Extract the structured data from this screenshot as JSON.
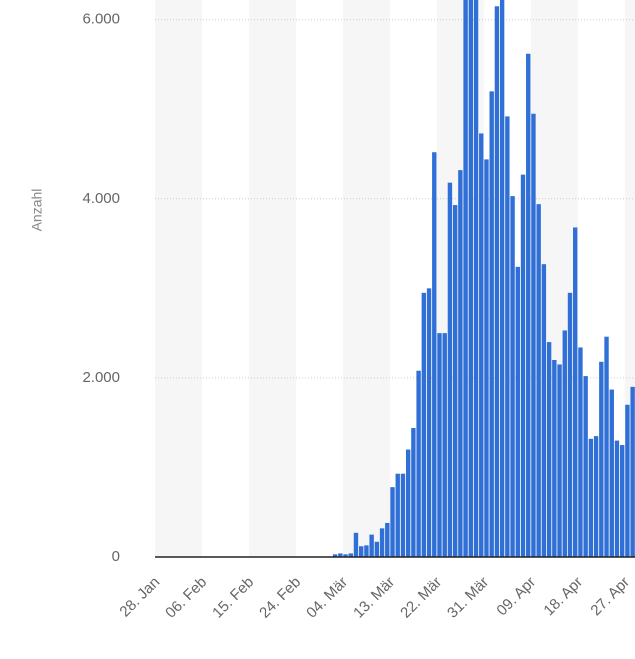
{
  "chart_data": {
    "type": "bar",
    "y_label": "Anzahl",
    "categories": [
      "28. Jan",
      null,
      null,
      null,
      null,
      null,
      null,
      null,
      null,
      "06. Feb",
      null,
      null,
      null,
      null,
      null,
      null,
      null,
      null,
      "15. Feb",
      null,
      null,
      null,
      null,
      null,
      null,
      null,
      null,
      "24. Feb",
      null,
      null,
      null,
      null,
      null,
      null,
      null,
      null,
      "04. Mär",
      null,
      null,
      null,
      null,
      null,
      null,
      null,
      null,
      "13. Mär",
      null,
      null,
      null,
      null,
      null,
      null,
      null,
      null,
      "22. Mär",
      null,
      null,
      null,
      null,
      null,
      null,
      null,
      null,
      "31. Mär",
      null,
      null,
      null,
      null,
      null,
      null,
      null,
      null,
      "09. Apr",
      null,
      null,
      null,
      null,
      null,
      null,
      null,
      null,
      "18. Apr",
      null,
      null,
      null,
      null,
      null,
      null,
      null,
      null,
      "27. Apr",
      null
    ],
    "values": [
      0,
      0,
      0,
      0,
      0,
      0,
      0,
      0,
      0,
      0,
      0,
      0,
      0,
      0,
      0,
      0,
      0,
      0,
      0,
      0,
      0,
      0,
      0,
      0,
      0,
      0,
      0,
      0,
      0,
      0,
      0,
      0,
      0,
      0,
      30,
      40,
      30,
      40,
      270,
      120,
      130,
      250,
      170,
      320,
      380,
      780,
      930,
      930,
      1200,
      1440,
      2080,
      2950,
      3000,
      4520,
      2500,
      2500,
      4180,
      3930,
      4320,
      6220,
      6220,
      6220,
      4730,
      4440,
      5200,
      6150,
      6220,
      4920,
      4030,
      3240,
      4270,
      5620,
      4950,
      3940,
      3270,
      2400,
      2200,
      2150,
      2530,
      2950,
      3680,
      2340,
      2020,
      1320,
      1350,
      2180,
      2460,
      1870,
      1300,
      1250,
      1700,
      1900
    ],
    "color": "#2f6fd6",
    "ylim": [
      0,
      6220
    ],
    "yticks": [
      0,
      {
        "value": 2000,
        "label": "2.000"
      },
      {
        "value": 4000,
        "label": "4.000"
      },
      {
        "value": 6000,
        "label": "6.000"
      }
    ],
    "grid": true
  }
}
